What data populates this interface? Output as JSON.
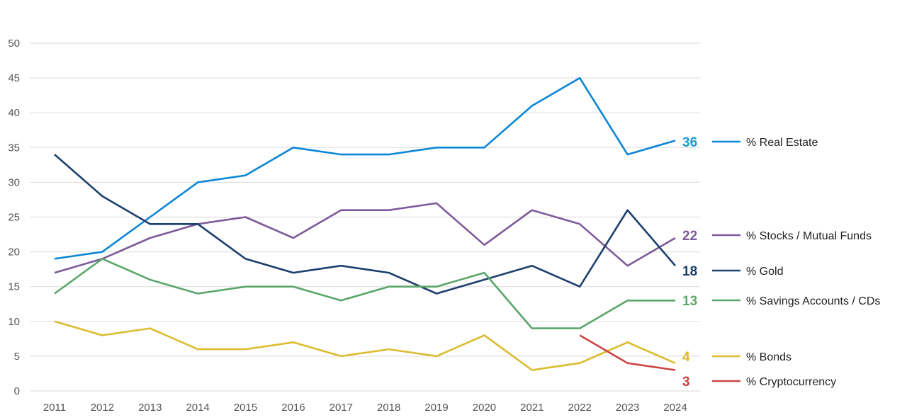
{
  "chart_data": {
    "type": "line",
    "title": "",
    "xlabel": "",
    "ylabel": "",
    "ylim": [
      0,
      50
    ],
    "yticks": [
      "0",
      "5",
      "10",
      "15",
      "20",
      "25",
      "30",
      "35",
      "40",
      "45",
      "50"
    ],
    "grid": true,
    "legend_placement": "right",
    "x": [
      "2011",
      "2012",
      "2013",
      "2014",
      "2015",
      "2016",
      "2017",
      "2018",
      "2019",
      "2020",
      "2021",
      "2022",
      "2023",
      "2024"
    ],
    "series": [
      {
        "name": "% Real Estate",
        "color": "#0a86d6",
        "label_color": "#1a9ad6",
        "end_label": "36",
        "values": [
          19,
          20,
          25,
          30,
          31,
          35,
          34,
          34,
          35,
          35,
          41,
          45,
          34,
          36
        ]
      },
      {
        "name": "% Stocks / Mutual Funds",
        "color": "#7d5a9a",
        "label_color": "#7d5a9a",
        "end_label": "22",
        "values": [
          17,
          19,
          22,
          24,
          25,
          22,
          26,
          26,
          27,
          21,
          26,
          24,
          18,
          22
        ]
      },
      {
        "name": "% Gold",
        "color": "#1b3f6e",
        "label_color": "#1b3f6e",
        "end_label": "18",
        "values": [
          34,
          28,
          24,
          24,
          19,
          17,
          18,
          17,
          14,
          16,
          18,
          15,
          26,
          18
        ]
      },
      {
        "name": "% Savings Accounts / CDs",
        "color": "#5aa66a",
        "label_color": "#5aa66a",
        "end_label": "13",
        "values": [
          14,
          19,
          16,
          14,
          15,
          15,
          13,
          15,
          15,
          17,
          9,
          9,
          13,
          13
        ]
      },
      {
        "name": "% Bonds",
        "color": "#dcbc2e",
        "label_color": "#d9b82a",
        "end_label": "4",
        "values": [
          10,
          8,
          9,
          6,
          6,
          7,
          5,
          6,
          5,
          8,
          3,
          4,
          7,
          4
        ]
      },
      {
        "name": "% Cryptocurrency",
        "color": "#cc4444",
        "label_color": "#cc3b3b",
        "end_label": "3",
        "values": [
          null,
          null,
          null,
          null,
          null,
          null,
          null,
          null,
          null,
          null,
          null,
          8,
          4,
          3
        ]
      }
    ]
  }
}
